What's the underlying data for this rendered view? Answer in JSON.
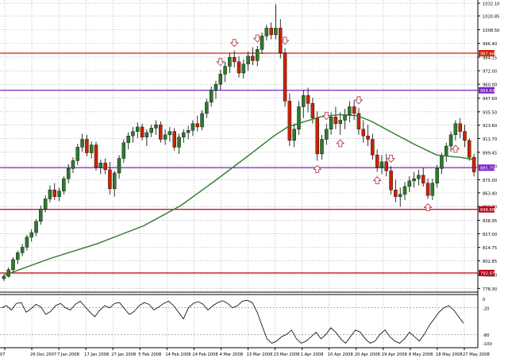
{
  "chart_data": [
    {
      "type": "candlestick",
      "y_axis_labels": [
        "1032.10",
        "1020.85",
        "1008.50",
        "996.40",
        "984.15",
        "972.00",
        "960.00",
        "947.60",
        "935.50",
        "923.60",
        "911.70",
        "899.45",
        "887.40",
        "875.00",
        "863.40",
        "851.20",
        "838.95",
        "827.00",
        "814.75",
        "802.85",
        "790.50",
        "778.30"
      ],
      "ylim": [
        775,
        1035
      ],
      "x_axis_labels": [
        "07",
        "26 Dec 2007",
        "7 Jan 2008",
        "17 Jan 2008",
        "27 Jan 2008",
        "5 Feb 2008",
        "14 Feb 2008",
        "24 Feb 2008",
        "4 Mar 2008",
        "13 Mar 2008",
        "23 Mar 2008",
        "1 Apr 2008",
        "10 Apr 2008",
        "20 Apr 2008",
        "29 Apr 2008",
        "8 May 2008",
        "18 May 2008",
        "27 May 2008"
      ],
      "horizontal_lines": [
        {
          "value": 987.66,
          "label": "987.66",
          "color": "#cc2200"
        },
        {
          "value": 954.64,
          "label": "954.64",
          "color": "#7b22cc"
        },
        {
          "value": 885.75,
          "label": "885.75",
          "color": "#7b22cc"
        },
        {
          "value": 848.68,
          "label": "848.68",
          "color": "#b8001a"
        },
        {
          "value": 792.07,
          "label": "792.07",
          "color": "#b8001a"
        }
      ],
      "moving_average_color": "#2d7a2d",
      "bull_color": "#2d7a2d",
      "bear_color": "#cc2200",
      "arrow_color": "#b3404a",
      "grid": true,
      "candles": [
        [
          787,
          791,
          785,
          789
        ],
        [
          789,
          797,
          788,
          795
        ],
        [
          795,
          806,
          793,
          804
        ],
        [
          804,
          812,
          800,
          810
        ],
        [
          810,
          818,
          807,
          815
        ],
        [
          815,
          826,
          812,
          824
        ],
        [
          824,
          831,
          820,
          828
        ],
        [
          828,
          840,
          825,
          838
        ],
        [
          838,
          852,
          835,
          849
        ],
        [
          849,
          861,
          846,
          858
        ],
        [
          858,
          870,
          855,
          866
        ],
        [
          866,
          872,
          857,
          860
        ],
        [
          860,
          868,
          856,
          865
        ],
        [
          865,
          878,
          862,
          876
        ],
        [
          876,
          889,
          872,
          885
        ],
        [
          885,
          895,
          881,
          892
        ],
        [
          892,
          907,
          888,
          904
        ],
        [
          904,
          916,
          900,
          911
        ],
        [
          911,
          915,
          896,
          899
        ],
        [
          899,
          909,
          894,
          906
        ],
        [
          906,
          909,
          883,
          886
        ],
        [
          886,
          893,
          880,
          890
        ],
        [
          890,
          894,
          880,
          884
        ],
        [
          884,
          891,
          862,
          867
        ],
        [
          867,
          883,
          860,
          881
        ],
        [
          881,
          897,
          876,
          894
        ],
        [
          894,
          911,
          890,
          908
        ],
        [
          908,
          917,
          902,
          914
        ],
        [
          914,
          922,
          908,
          918
        ],
        [
          918,
          926,
          912,
          922
        ],
        [
          922,
          925,
          910,
          913
        ],
        [
          913,
          920,
          905,
          917
        ],
        [
          917,
          924,
          913,
          921
        ],
        [
          921,
          928,
          915,
          924
        ],
        [
          924,
          927,
          908,
          911
        ],
        [
          911,
          920,
          906,
          915
        ],
        [
          915,
          922,
          909,
          918
        ],
        [
          918,
          921,
          901,
          904
        ],
        [
          904,
          916,
          898,
          913
        ],
        [
          913,
          920,
          908,
          917
        ],
        [
          917,
          923,
          911,
          919
        ],
        [
          919,
          928,
          914,
          925
        ],
        [
          925,
          932,
          918,
          922
        ],
        [
          922,
          937,
          919,
          934
        ],
        [
          934,
          947,
          930,
          944
        ],
        [
          944,
          958,
          940,
          955
        ],
        [
          955,
          963,
          947,
          960
        ],
        [
          960,
          973,
          955,
          969
        ],
        [
          969,
          980,
          962,
          976
        ],
        [
          976,
          988,
          970,
          984
        ],
        [
          984,
          990,
          975,
          980
        ],
        [
          980,
          985,
          966,
          970
        ],
        [
          970,
          982,
          965,
          978
        ],
        [
          978,
          989,
          972,
          985
        ],
        [
          985,
          993,
          977,
          981
        ],
        [
          981,
          994,
          976,
          991
        ],
        [
          991,
          1006,
          987,
          1003
        ],
        [
          1003,
          1013,
          999,
          1010
        ],
        [
          1010,
          1015,
          1000,
          1004
        ],
        [
          1004,
          1031,
          1000,
          1010
        ],
        [
          1010,
          1018,
          983,
          988
        ],
        [
          988,
          992,
          940,
          945
        ],
        [
          945,
          952,
          905,
          910
        ],
        [
          910,
          925,
          904,
          920
        ],
        [
          920,
          945,
          915,
          940
        ],
        [
          940,
          955,
          930,
          950
        ],
        [
          950,
          957,
          935,
          943
        ],
        [
          943,
          948,
          925,
          930
        ],
        [
          930,
          936,
          892,
          898
        ],
        [
          898,
          915,
          893,
          911
        ],
        [
          911,
          925,
          906,
          920
        ],
        [
          920,
          935,
          915,
          931
        ],
        [
          931,
          940,
          920,
          925
        ],
        [
          925,
          935,
          915,
          928
        ],
        [
          928,
          938,
          920,
          933
        ],
        [
          933,
          945,
          926,
          940
        ],
        [
          940,
          946,
          928,
          934
        ],
        [
          934,
          939,
          915,
          920
        ],
        [
          920,
          928,
          908,
          914
        ],
        [
          914,
          924,
          905,
          911
        ],
        [
          911,
          916,
          893,
          897
        ],
        [
          897,
          902,
          882,
          886
        ],
        [
          886,
          897,
          880,
          891
        ],
        [
          891,
          898,
          878,
          883
        ],
        [
          883,
          887,
          862,
          866
        ],
        [
          866,
          875,
          855,
          860
        ],
        [
          860,
          868,
          851,
          862
        ],
        [
          862,
          873,
          857,
          869
        ],
        [
          869,
          878,
          864,
          874
        ],
        [
          874,
          882,
          868,
          876
        ],
        [
          876,
          884,
          870,
          879
        ],
        [
          879,
          886,
          869,
          872
        ],
        [
          872,
          876,
          858,
          861
        ],
        [
          861,
          876,
          857,
          872
        ],
        [
          872,
          888,
          868,
          885
        ],
        [
          885,
          899,
          880,
          896
        ],
        [
          896,
          908,
          891,
          905
        ],
        [
          905,
          918,
          900,
          915
        ],
        [
          915,
          928,
          910,
          925
        ],
        [
          925,
          930,
          912,
          918
        ],
        [
          918,
          924,
          904,
          910
        ],
        [
          910,
          912,
          892,
          895
        ],
        [
          895,
          898,
          878,
          882
        ]
      ],
      "moving_average": [
        [
          0,
          790
        ],
        [
          10,
          805
        ],
        [
          20,
          818
        ],
        [
          30,
          834
        ],
        [
          38,
          852
        ],
        [
          46,
          876
        ],
        [
          53,
          898
        ],
        [
          58,
          914
        ],
        [
          61,
          922
        ],
        [
          64,
          926
        ],
        [
          68,
          931
        ],
        [
          72,
          933
        ],
        [
          76,
          932
        ],
        [
          79,
          927
        ],
        [
          83,
          918
        ],
        [
          88,
          907
        ],
        [
          93,
          897
        ],
        [
          98,
          895
        ],
        [
          101,
          893
        ]
      ],
      "arrows": [
        {
          "dir": "down",
          "index": 68
        },
        {
          "dir": "down",
          "index": 72
        },
        {
          "dir": "down",
          "index": 80
        },
        {
          "dir": "down",
          "index": 88
        },
        {
          "dir": "down",
          "index": 101
        },
        {
          "dir": "down",
          "index": 112
        },
        {
          "dir": "down",
          "index": 122
        },
        {
          "dir": "up",
          "index": 98
        },
        {
          "dir": "up",
          "index": 106
        },
        {
          "dir": "up",
          "index": 117
        },
        {
          "dir": "up",
          "index": 134
        },
        {
          "dir": "up",
          "index": 142
        }
      ],
      "oscillator": {
        "ylim": [
          -110,
          10
        ],
        "labels": [
          {
            "value": 0,
            "label": "0"
          },
          {
            "value": -20,
            "label": "-20"
          },
          {
            "value": -80,
            "label": "-80"
          },
          {
            "value": -100,
            "label": "-100"
          }
        ],
        "levels": [
          -20,
          -80
        ],
        "values": [
          -20,
          -15,
          -25,
          -10,
          -8,
          -30,
          -22,
          -12,
          -18,
          -35,
          -28,
          -15,
          -10,
          -20,
          -25,
          -12,
          -5,
          -18,
          -30,
          -40,
          -25,
          -15,
          -20,
          -10,
          -8,
          -22,
          -35,
          -28,
          -15,
          -8,
          -12,
          -25,
          -18,
          -10,
          -5,
          -15,
          -30,
          -45,
          -20,
          -10,
          -6,
          -12,
          -25,
          -15,
          -8,
          -4,
          -10,
          -20,
          -15,
          -5,
          -3,
          -8,
          -30,
          -60,
          -90,
          -100,
          -95,
          -85,
          -80,
          -70,
          -90,
          -100,
          -95,
          -85,
          -75,
          -90,
          -80,
          -65,
          -75,
          -90,
          -100,
          -85,
          -70,
          -75,
          -90,
          -100,
          -95,
          -80,
          -70,
          -85,
          -95,
          -100,
          -90,
          -75,
          -85,
          -95,
          -80,
          -60,
          -45,
          -30,
          -20,
          -15,
          -25,
          -40,
          -55
        ]
      }
    }
  ]
}
